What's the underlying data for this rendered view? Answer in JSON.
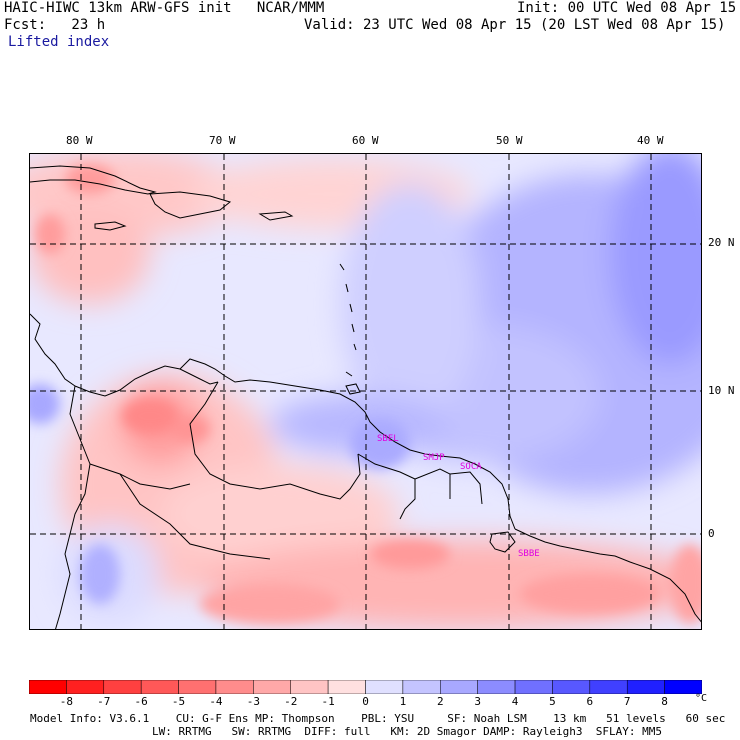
{
  "header": {
    "title": "HAIC-HIWC 13km ARW-GFS init   NCAR/MMM",
    "forecast": "Fcst:   23 h",
    "init": "Init: 00 UTC Wed 08 Apr 15",
    "valid": "Valid: 23 UTC Wed 08 Apr 15 (20 LST Wed 08 Apr 15)",
    "field": "Lifted index"
  },
  "map": {
    "lon_labels": [
      "80 W",
      "70 W",
      "60 W",
      "50 W",
      "40 W"
    ],
    "lat_labels": [
      "20 N",
      "10 N",
      "0"
    ],
    "stations": [
      "SBEL",
      "SMJP",
      "SOCA",
      "SBBE"
    ],
    "colors": {
      "border": "#000000",
      "grid": "#000000",
      "station": "#e000e0"
    }
  },
  "colorbar": {
    "ticks": [
      "-8",
      "-7",
      "-6",
      "-5",
      "-4",
      "-3",
      "-2",
      "-1",
      "0",
      "1",
      "2",
      "3",
      "4",
      "5",
      "6",
      "7",
      "8"
    ],
    "unit": "°C",
    "colors": [
      "#ff0000",
      "#ff2020",
      "#ff4040",
      "#ff5858",
      "#ff7070",
      "#ff8c8c",
      "#ffa8a8",
      "#ffc4c4",
      "#ffe0e0",
      "#e0e0ff",
      "#c4c4ff",
      "#a8a8ff",
      "#8c8cff",
      "#7070ff",
      "#5858ff",
      "#4040ff",
      "#2020ff",
      "#0000ff"
    ]
  },
  "footer": {
    "line1": "Model Info: V3.6.1    CU: G-F Ens MP: Thompson    PBL: YSU     SF: Noah LSM    13 km   51 levels   60 sec",
    "line2": "LW: RRTMG   SW: RRTMG  DIFF: full   KM: 2D Smagor DAMP: Rayleigh3  SFLAY: MM5"
  }
}
